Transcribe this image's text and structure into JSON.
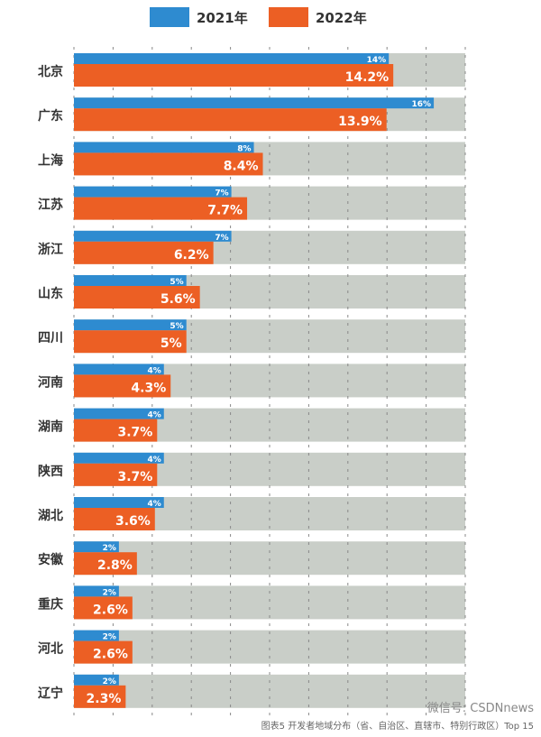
{
  "chart_data": {
    "type": "bar",
    "orientation": "horizontal",
    "categories": [
      "北京",
      "广东",
      "上海",
      "江苏",
      "浙江",
      "山东",
      "四川",
      "河南",
      "湖南",
      "陕西",
      "湖北",
      "安徽",
      "重庆",
      "河北",
      "辽宁"
    ],
    "series": [
      {
        "name": "2021年",
        "color": "#2e8bd0",
        "values": [
          14,
          16,
          8,
          7,
          7,
          5,
          5,
          4,
          4,
          4,
          4,
          2,
          2,
          2,
          2
        ],
        "labels": [
          "14%",
          "16%",
          "8%",
          "7%",
          "7%",
          "5%",
          "5%",
          "4%",
          "4%",
          "4%",
          "4%",
          "2%",
          "2%",
          "2%",
          "2%"
        ]
      },
      {
        "name": "2022年",
        "color": "#ec5f24",
        "values": [
          14.2,
          13.9,
          8.4,
          7.7,
          6.2,
          5.6,
          5,
          4.3,
          3.7,
          3.7,
          3.6,
          2.8,
          2.6,
          2.6,
          2.3
        ],
        "labels": [
          "14.2%",
          "13.9%",
          "8.4%",
          "7.7%",
          "6.2%",
          "5.6%",
          "5%",
          "4.3%",
          "3.7%",
          "3.7%",
          "3.6%",
          "2.8%",
          "2.6%",
          "2.6%",
          "2.3%"
        ]
      }
    ],
    "xlim": [
      0,
      17.4
    ],
    "grid": true,
    "legend": "top-center",
    "band_color": "#c9cec8",
    "caption": "图表5 开发者地域分布（省、自治区、直辖市、特别行政区）Top 15"
  },
  "watermark": "微信号: CSDNnews"
}
